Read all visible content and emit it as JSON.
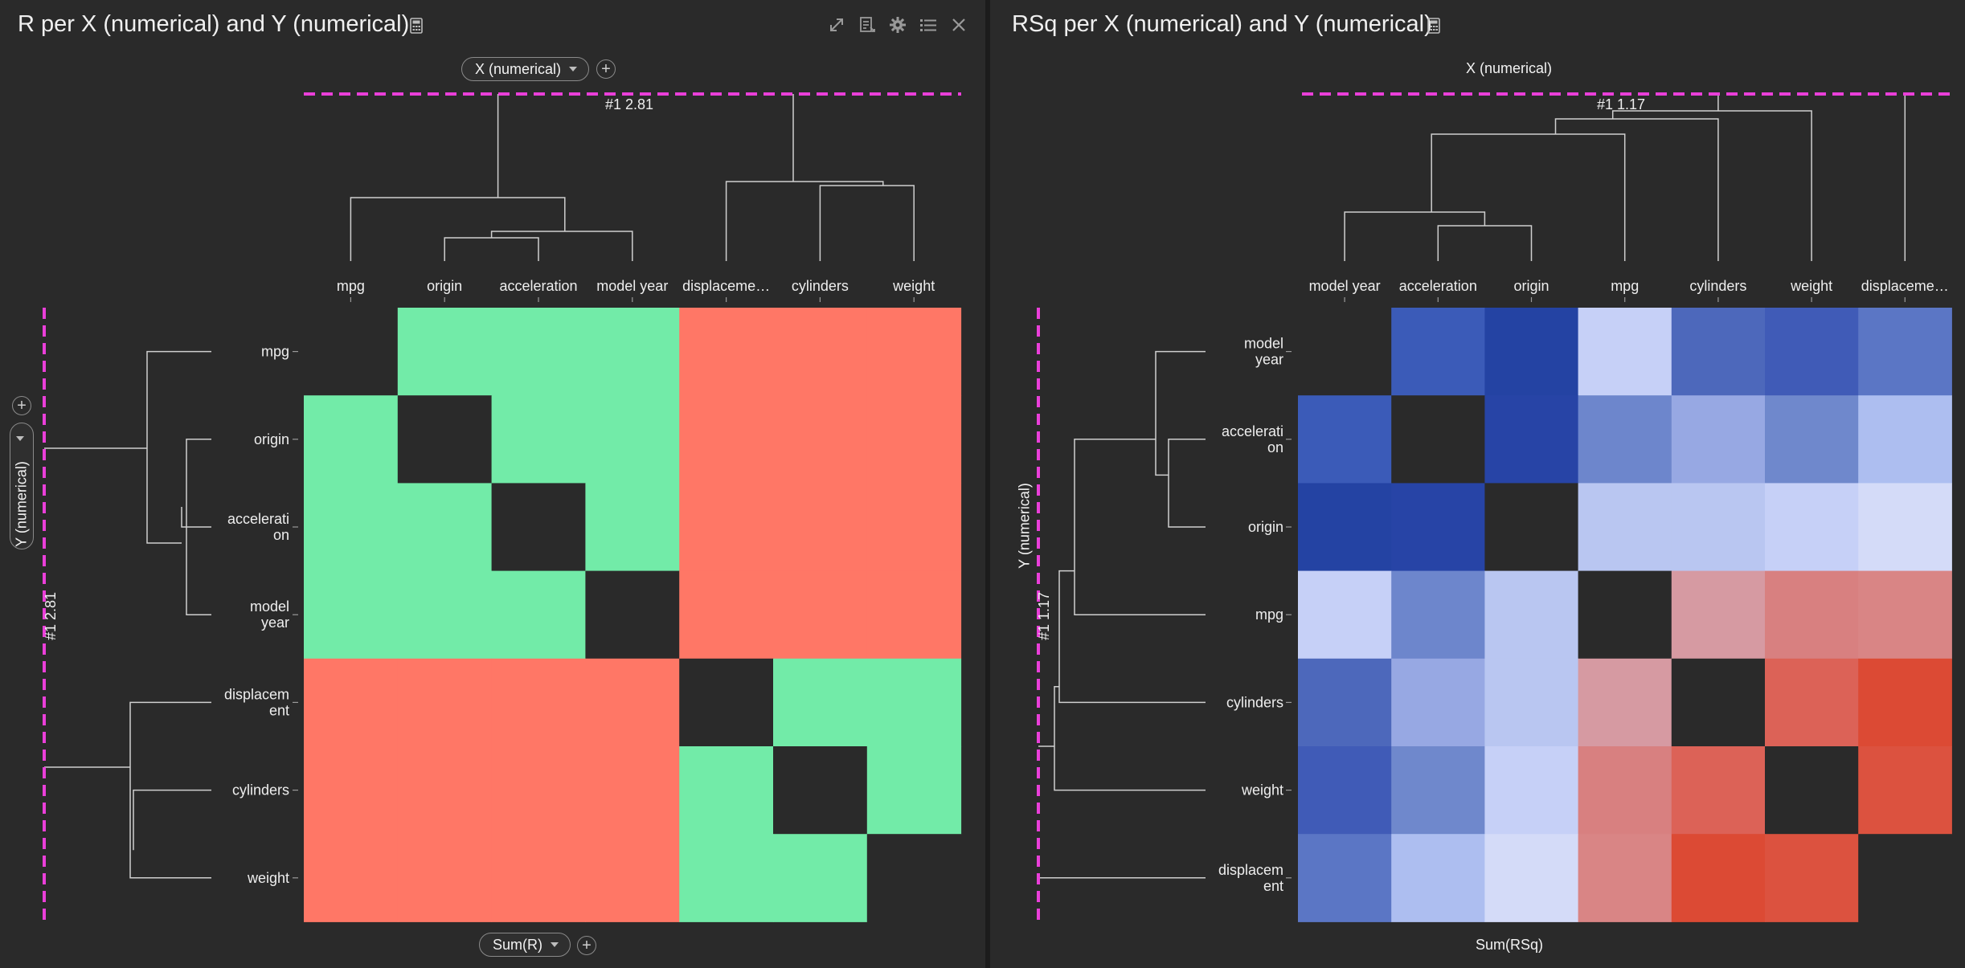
{
  "colors": {
    "background": "#2a2a2a",
    "positive": "#72eba8",
    "negative": "#ff7766",
    "diagonal": "#2a2a2a",
    "marker_line": "#ea3fd9",
    "dendro_line": "#cfcfcf"
  },
  "left": {
    "title": "R per X (numerical) and Y (numerical)",
    "x_pill": "X (numerical)",
    "y_pill": "Y (numerical)",
    "sum_pill": "Sum(R)",
    "marker_label": "#1  2.81",
    "icons": [
      "calculator-icon",
      "expand-icon",
      "export-icon",
      "gear-icon",
      "list-icon",
      "close-icon"
    ]
  },
  "right": {
    "title": "RSq per X (numerical) and Y (numerical)",
    "x_axis_label": "X (numerical)",
    "y_axis_label": "Y (numerical)",
    "sum_label": "Sum(RSq)",
    "marker_label": "#1  1.17",
    "icons": [
      "calculator-icon"
    ]
  },
  "chart_data": [
    {
      "type": "heatmap",
      "title": "R per X (numerical) and Y (numerical)",
      "xlabel": "X (numerical)",
      "ylabel": "Y (numerical)",
      "value_label": "Sum(R)",
      "x_categories": [
        "mpg",
        "origin",
        "acceleration",
        "model year",
        "displaceme…",
        "cylinders",
        "weight"
      ],
      "y_categories": [
        "mpg",
        "origin",
        "accelerati\non",
        "model\nyear",
        "displacem\nent",
        "cylinders",
        "weight"
      ],
      "sign_matrix": [
        [
          null,
          1,
          1,
          1,
          -1,
          -1,
          -1
        ],
        [
          1,
          null,
          1,
          1,
          -1,
          -1,
          -1
        ],
        [
          1,
          1,
          null,
          1,
          -1,
          -1,
          -1
        ],
        [
          1,
          1,
          1,
          null,
          -1,
          -1,
          -1
        ],
        [
          -1,
          -1,
          -1,
          -1,
          null,
          1,
          1
        ],
        [
          -1,
          -1,
          -1,
          -1,
          1,
          null,
          1
        ],
        [
          -1,
          -1,
          -1,
          -1,
          1,
          1,
          null
        ]
      ],
      "legend": {
        "positive": "green",
        "negative": "salmon",
        "diagonal": "empty"
      }
    },
    {
      "type": "heatmap",
      "title": "RSq per X (numerical) and Y (numerical)",
      "xlabel": "X (numerical)",
      "ylabel": "Y (numerical)",
      "value_label": "Sum(RSq)",
      "x_categories": [
        "model year",
        "acceleration",
        "origin",
        "mpg",
        "cylinders",
        "weight",
        "displaceme…"
      ],
      "y_categories": [
        "model\nyear",
        "accelerati\non",
        "origin",
        "mpg",
        "cylinders",
        "weight",
        "displacem\nent"
      ],
      "cell_colors": [
        [
          null,
          "#3b5bb8",
          "#2443a3",
          "#c6d0f7",
          "#4d68bb",
          "#405bb7",
          "#5b76c5"
        ],
        [
          "#3b5bb8",
          null,
          "#2744a6",
          "#6d86cc",
          "#97a8e3",
          "#6f88cc",
          "#adbef0"
        ],
        [
          "#2443a3",
          "#2744a6",
          null,
          "#b9c6f1",
          "#b9c6f1",
          "#c6d0f7",
          "#d4dbf8"
        ],
        [
          "#c6d0f7",
          "#6d86cc",
          "#b9c6f1",
          null,
          "#d69aa2",
          "#d88080",
          "#d98585"
        ],
        [
          "#4d68bb",
          "#97a8e3",
          "#b9c6f1",
          "#d69aa2",
          null,
          "#dc6257",
          "#dc4a34"
        ],
        [
          "#405bb7",
          "#6f88cc",
          "#c6d0f7",
          "#d88080",
          "#dc6257",
          null,
          "#dc523f"
        ],
        [
          "#5b76c5",
          "#adbef0",
          "#d4dbf8",
          "#d98585",
          "#dc4a34",
          "#dc523f",
          null
        ]
      ]
    }
  ]
}
